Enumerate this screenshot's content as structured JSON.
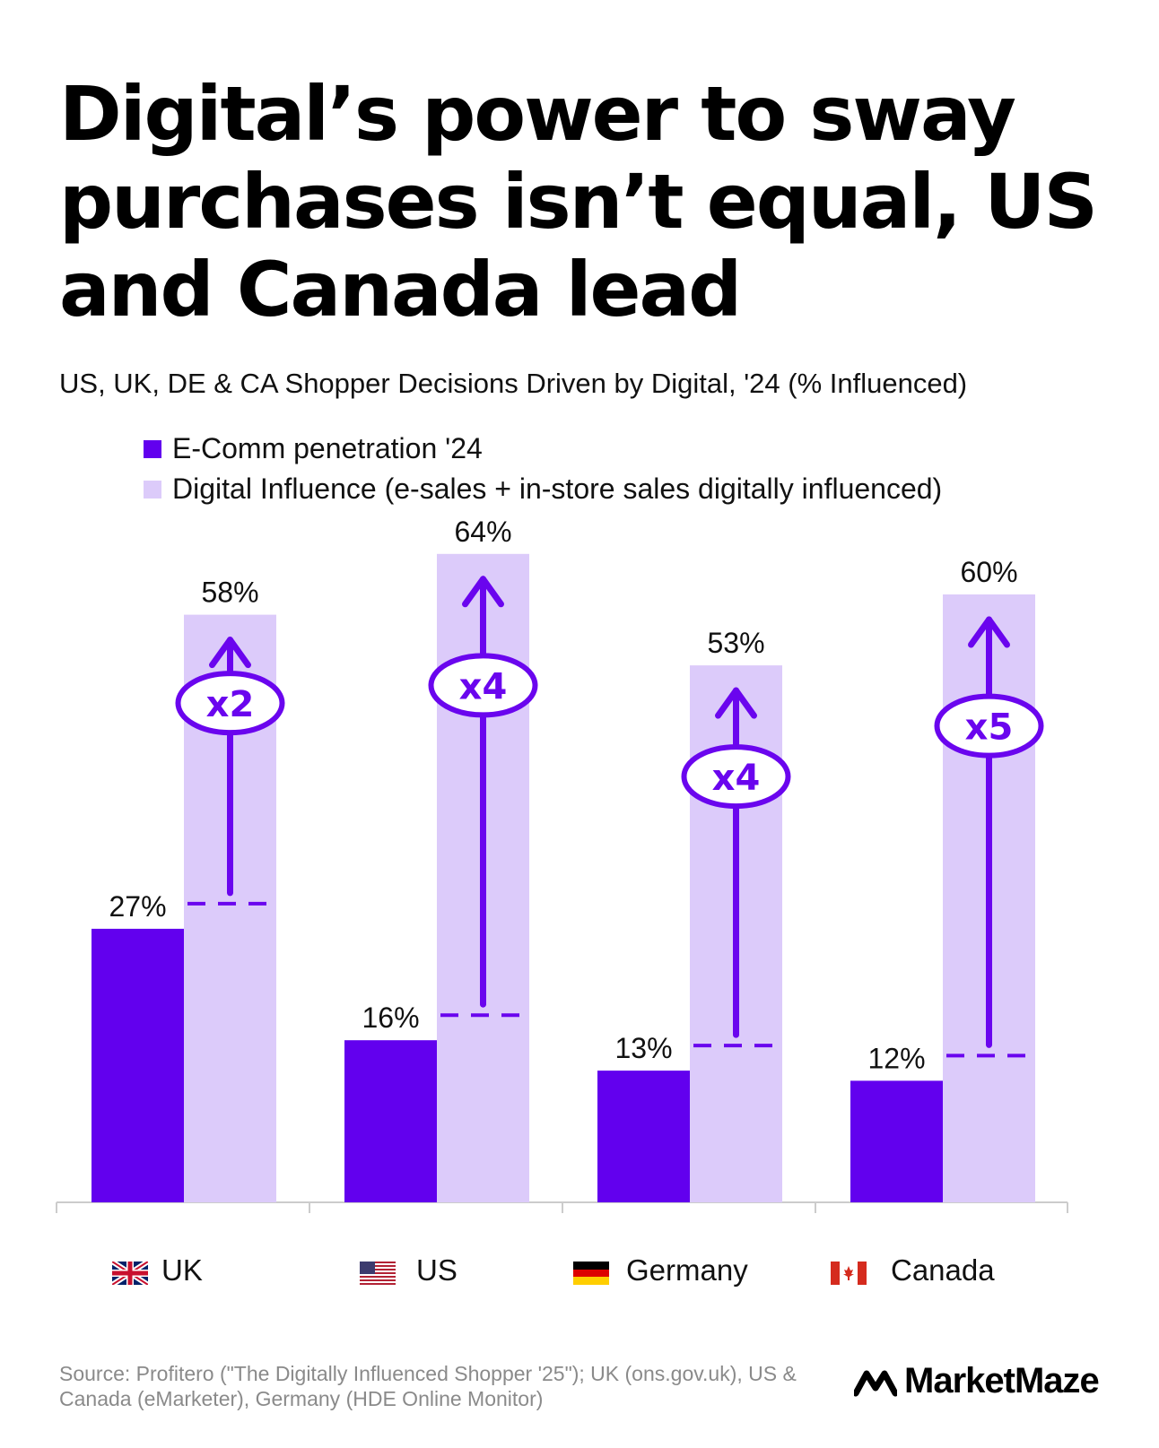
{
  "chart_data": {
    "type": "bar",
    "title": "Digital’s power to sway purchases isn’t equal, US and Canada lead",
    "subtitle": "US, UK, DE & CA Shopper Decisions Driven by Digital, '24 (% Influenced)",
    "categories": [
      "UK",
      "US",
      "Germany",
      "Canada"
    ],
    "series": [
      {
        "name": "E-Comm penetration '24",
        "values": [
          27,
          16,
          13,
          12
        ],
        "labels": [
          "27%",
          "16%",
          "13%",
          "12%"
        ]
      },
      {
        "name": "Digital Influence  (e-sales + in-store sales digitally influenced)",
        "values": [
          58,
          64,
          53,
          60
        ],
        "labels": [
          "58%",
          "64%",
          "53%",
          "60%"
        ]
      }
    ],
    "multipliers": [
      "x2",
      "x4",
      "x4",
      "x5"
    ],
    "ylim": [
      0,
      64
    ],
    "grid": false,
    "legend_position": "top-left"
  },
  "colors": {
    "ecomm": "#6200ee",
    "influence": "#dccbfa",
    "accent": "#6a05ee",
    "axis": "#cccccc"
  },
  "flags": {
    "UK": "uk-flag-icon",
    "US": "us-flag-icon",
    "Germany": "germany-flag-icon",
    "Canada": "canada-flag-icon"
  },
  "source": "Source: Profitero (\"The Digitally Influenced Shopper '25\"); UK (ons.gov.uk), US & Canada (eMarketer), Germany (HDE Online Monitor)",
  "brand": "MarketMaze"
}
